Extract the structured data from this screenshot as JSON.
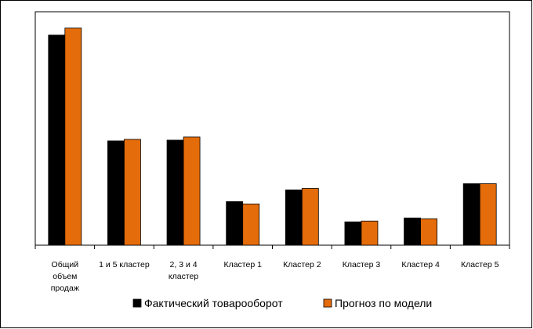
{
  "chart_data": {
    "type": "bar",
    "title": "",
    "xlabel": "",
    "ylabel": "",
    "categories": [
      [
        "Общий",
        "объем",
        "продаж"
      ],
      [
        "1 и 5 кластер"
      ],
      [
        "2, 3 и 4",
        "кластер"
      ],
      [
        "Кластер 1"
      ],
      [
        "Кластер 2"
      ],
      [
        "Кластер 3"
      ],
      [
        "Кластер 4"
      ],
      [
        "Кластер 5"
      ]
    ],
    "series": [
      {
        "name": "Фактический товарооборот",
        "color": "#000000",
        "values": [
          270,
          134,
          135,
          56,
          71,
          30,
          35,
          79
        ]
      },
      {
        "name": "Прогноз по модели",
        "color": "#E46C0A",
        "values": [
          279,
          136,
          139,
          53,
          73,
          31,
          34,
          79
        ]
      }
    ],
    "ylim": [
      0,
      300
    ],
    "grid": false,
    "legend": "bottom"
  }
}
